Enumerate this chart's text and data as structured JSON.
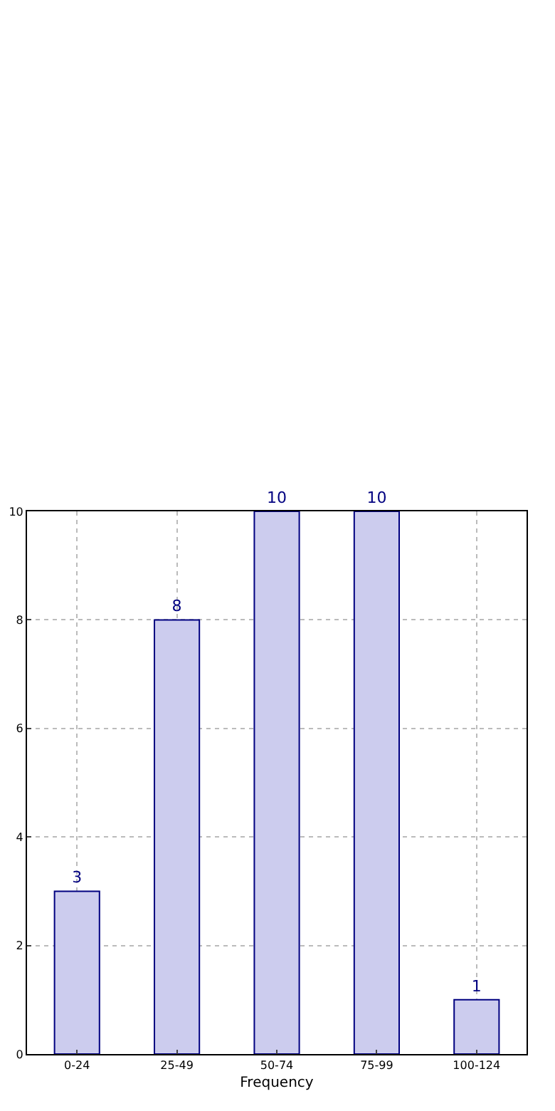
{
  "chart_data": {
    "type": "bar",
    "xlabel": "Frequency",
    "categories": [
      "0-24",
      "25-49",
      "50-74",
      "75-99",
      "100-124"
    ],
    "values": [
      3,
      8,
      10,
      10,
      1
    ],
    "color": "#ccccee",
    "ylim": [
      0,
      10
    ],
    "yticks": [
      0,
      2,
      4,
      6,
      8,
      10
    ],
    "grid": true,
    "data_labels": true
  }
}
